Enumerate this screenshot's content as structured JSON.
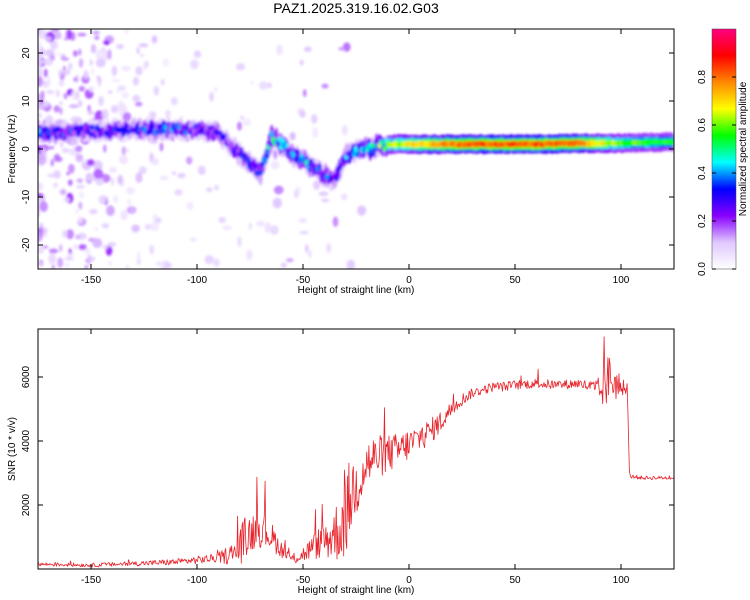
{
  "title": "PAZ1.2025.319.16.02.G03",
  "chart_data": [
    {
      "type": "heatmap",
      "xlabel": "Height of straight line (km)",
      "ylabel": "Frequency (Hz)",
      "xlim": [
        -175,
        125
      ],
      "ylim": [
        -25,
        25
      ],
      "xticks": [
        -150,
        -100,
        -50,
        0,
        50,
        100
      ],
      "yticks": [
        -20,
        -10,
        0,
        10,
        20
      ],
      "colorbar": {
        "label": "Normalized spectral amplitude",
        "range": [
          0,
          1
        ],
        "ticks": [
          "0.0",
          "0.2",
          "0.4",
          "0.6",
          "0.8"
        ],
        "colors": [
          "#ffffff",
          "#e0c8ff",
          "#8800ff",
          "#0000ff",
          "#00ffff",
          "#00ff00",
          "#ffff00",
          "#ff8800",
          "#ff0000",
          "#ff0080"
        ]
      },
      "ridge": {
        "x": [
          -175,
          -150,
          -130,
          -115,
          -100,
          -90,
          -85,
          -80,
          -75,
          -70,
          -65,
          -60,
          -55,
          -50,
          -45,
          -40,
          -35,
          -30,
          -25,
          -20,
          -15,
          -10,
          -5,
          0,
          10,
          20,
          40,
          60,
          80,
          100,
          125
        ],
        "frequency": [
          3.5,
          3.8,
          4,
          4.2,
          4,
          3.5,
          1,
          -1,
          -3,
          -5,
          2.5,
          1,
          -1,
          -2.5,
          -4,
          -5.5,
          -6.5,
          -1.5,
          -0.5,
          0,
          0.5,
          1,
          1,
          1,
          1,
          1,
          1,
          1,
          1.2,
          1.2,
          1.5
        ],
        "amplitude": [
          0.35,
          0.3,
          0.3,
          0.35,
          0.3,
          0.3,
          0.25,
          0.3,
          0.3,
          0.3,
          0.45,
          0.4,
          0.4,
          0.4,
          0.4,
          0.35,
          0.3,
          0.35,
          0.4,
          0.45,
          0.5,
          0.6,
          0.65,
          0.7,
          0.75,
          0.8,
          0.85,
          0.85,
          0.8,
          0.6,
          0.55
        ]
      }
    },
    {
      "type": "line",
      "xlabel": "Height of straight line (km)",
      "ylabel": "SNR (10 * v/v)",
      "xlim": [
        -175,
        125
      ],
      "ylim": [
        0,
        7500
      ],
      "xticks": [
        -150,
        -100,
        -50,
        0,
        50,
        100
      ],
      "yticks": [
        2000,
        4000,
        6000
      ],
      "series": [
        {
          "name": "SNR",
          "color": "#e8232b",
          "x": [
            -175,
            -150,
            -125,
            -110,
            -100,
            -90,
            -82,
            -78,
            -72,
            -66,
            -60,
            -55,
            -50,
            -45,
            -40,
            -35,
            -30,
            -28,
            -25,
            -22,
            -20,
            -15,
            -10,
            -5,
            0,
            5,
            10,
            15,
            20,
            25,
            30,
            35,
            40,
            45,
            50,
            60,
            70,
            80,
            85,
            90,
            95,
            100,
            103,
            104,
            110,
            125
          ],
          "values": [
            150,
            120,
            180,
            220,
            280,
            350,
            500,
            900,
            1300,
            1100,
            600,
            300,
            450,
            700,
            900,
            1100,
            1500,
            2200,
            2600,
            3000,
            3300,
            3500,
            3600,
            3700,
            3900,
            4100,
            4300,
            4600,
            5000,
            5300,
            5500,
            5600,
            5700,
            5700,
            5750,
            5800,
            5750,
            5800,
            5700,
            5500,
            6000,
            5600,
            5600,
            2900,
            2850,
            2850
          ],
          "noise": [
            60,
            60,
            80,
            100,
            120,
            150,
            400,
            700,
            600,
            500,
            250,
            150,
            250,
            400,
            600,
            900,
            1200,
            1300,
            1000,
            900,
            800,
            700,
            600,
            550,
            500,
            450,
            400,
            350,
            250,
            200,
            150,
            150,
            150,
            150,
            150,
            150,
            150,
            150,
            200,
            500,
            900,
            200,
            100,
            60,
            60,
            60
          ]
        }
      ]
    }
  ]
}
